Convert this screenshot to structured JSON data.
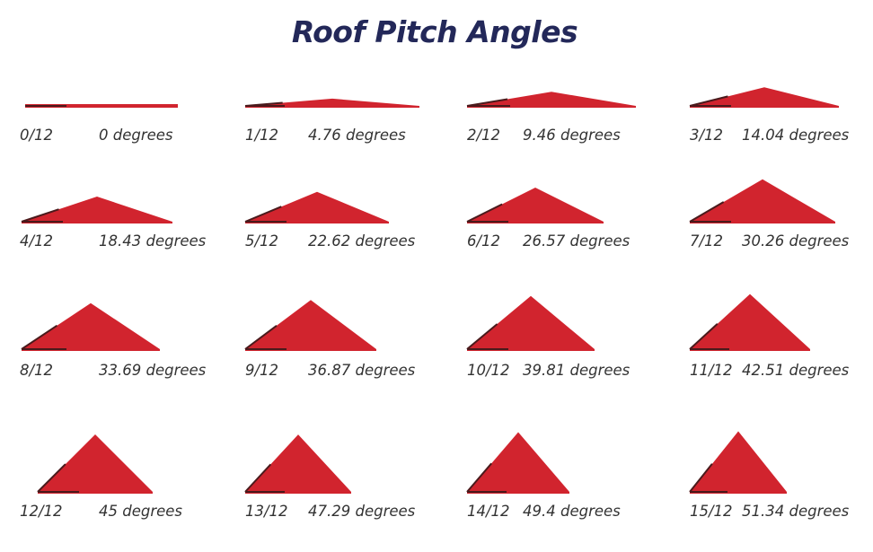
{
  "title": "Roof Pitch Angles",
  "colors": {
    "roof": "#d1242e",
    "base_line": "#4a1a1c",
    "title": "#232859",
    "label": "#333333"
  },
  "pitches": [
    {
      "pitch": "0/12",
      "degrees": "0 degrees",
      "rise": 0
    },
    {
      "pitch": "1/12",
      "degrees": "4.76 degrees",
      "rise": 1
    },
    {
      "pitch": "2/12",
      "degrees": "9.46 degrees",
      "rise": 2
    },
    {
      "pitch": "3/12",
      "degrees": "14.04 degrees",
      "rise": 3
    },
    {
      "pitch": "4/12",
      "degrees": "18.43 degrees",
      "rise": 4
    },
    {
      "pitch": "5/12",
      "degrees": "22.62 degrees",
      "rise": 5
    },
    {
      "pitch": "6/12",
      "degrees": "26.57 degrees",
      "rise": 6
    },
    {
      "pitch": "7/12",
      "degrees": "30.26 degrees",
      "rise": 7
    },
    {
      "pitch": "8/12",
      "degrees": "33.69 degrees",
      "rise": 8
    },
    {
      "pitch": "9/12",
      "degrees": "36.87 degrees",
      "rise": 9
    },
    {
      "pitch": "10/12",
      "degrees": "39.81 degrees",
      "rise": 10
    },
    {
      "pitch": "11/12",
      "degrees": "42.51 degrees",
      "rise": 11
    },
    {
      "pitch": "12/12",
      "degrees": "45 degrees",
      "rise": 12
    },
    {
      "pitch": "13/12",
      "degrees": "47.29 degrees",
      "rise": 13
    },
    {
      "pitch": "14/12",
      "degrees": "49.4 degrees",
      "rise": 14
    },
    {
      "pitch": "15/12",
      "degrees": "51.34 degrees",
      "rise": 15
    }
  ]
}
